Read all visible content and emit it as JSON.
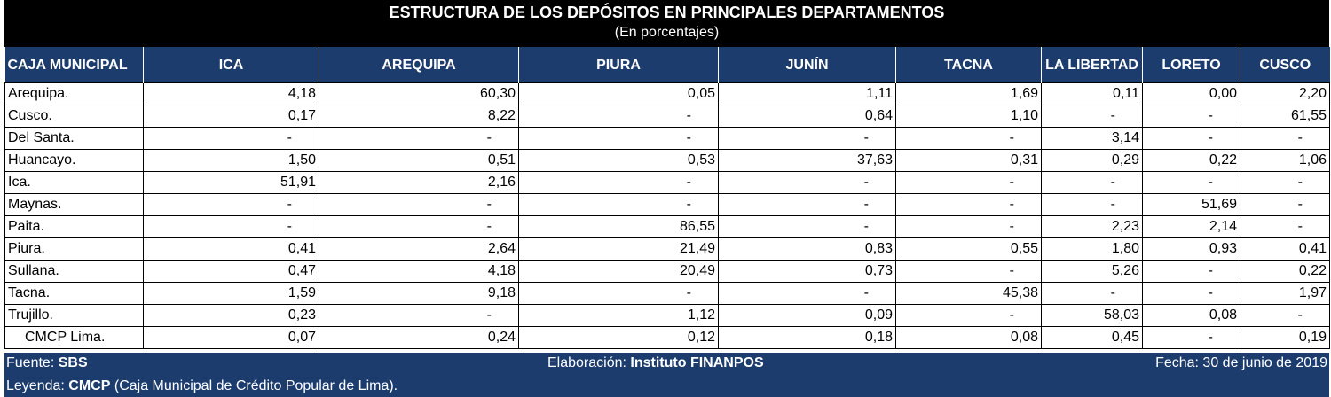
{
  "title": "ESTRUCTURA DE LOS DEPÓSITOS EN PRINCIPALES DEPARTAMENTOS",
  "subtitle": "(En porcentajes)",
  "columns": [
    "CAJA MUNICIPAL",
    "ICA",
    "AREQUIPA",
    "PIURA",
    "JUNÍN",
    "TACNA",
    "LA LIBERTAD",
    "LORETO",
    "CUSCO"
  ],
  "rows": [
    {
      "name": "Arequipa.",
      "values": [
        "4,18",
        "60,30",
        "0,05",
        "1,11",
        "1,69",
        "0,11",
        "0,00",
        "2,20"
      ]
    },
    {
      "name": "Cusco.",
      "values": [
        "0,17",
        "8,22",
        "-",
        "0,64",
        "1,10",
        "-",
        "-",
        "61,55"
      ]
    },
    {
      "name": "Del Santa.",
      "values": [
        "-",
        "-",
        "-",
        "-",
        "-",
        "3,14",
        "-",
        "-"
      ]
    },
    {
      "name": "Huancayo.",
      "values": [
        "1,50",
        "0,51",
        "0,53",
        "37,63",
        "0,31",
        "0,29",
        "0,22",
        "1,06"
      ]
    },
    {
      "name": "Ica.",
      "values": [
        "51,91",
        "2,16",
        "-",
        "-",
        "-",
        "-",
        "-",
        "-"
      ]
    },
    {
      "name": "Maynas.",
      "values": [
        "-",
        "-",
        "-",
        "-",
        "-",
        "-",
        "51,69",
        "-"
      ]
    },
    {
      "name": "Paita.",
      "values": [
        "-",
        "-",
        "86,55",
        "-",
        "-",
        "2,23",
        "2,14",
        "-"
      ]
    },
    {
      "name": "Piura.",
      "values": [
        "0,41",
        "2,64",
        "21,49",
        "0,83",
        "0,55",
        "1,80",
        "0,93",
        "0,41"
      ]
    },
    {
      "name": "Sullana.",
      "values": [
        "0,47",
        "4,18",
        "20,49",
        "0,73",
        "-",
        "5,26",
        "-",
        "0,22"
      ]
    },
    {
      "name": "Tacna.",
      "values": [
        "1,59",
        "9,18",
        "-",
        "-",
        "45,38",
        "-",
        "-",
        "1,97"
      ]
    },
    {
      "name": "Trujillo.",
      "values": [
        "0,23",
        "-",
        "1,12",
        "0,09",
        "-",
        "58,03",
        "0,08",
        "-"
      ]
    },
    {
      "name": "CMCP Lima.",
      "values": [
        "0,07",
        "0,24",
        "0,12",
        "0,18",
        "0,08",
        "0,45",
        "-",
        "0,19"
      ]
    }
  ],
  "footer": {
    "source_label": "Fuente:",
    "source_value": "SBS",
    "made_label": "Elaboración:",
    "made_value": "Instituto FINANPOS",
    "date": "Fecha: 30 de junio de 2019",
    "legend_label": "Leyenda:",
    "legend_abbr": "CMCP",
    "legend_text": "(Caja Municipal de Crédito Popular de Lima)."
  },
  "colors": {
    "header_bg": "#1d3c6e",
    "banner_bg": "#000000"
  }
}
